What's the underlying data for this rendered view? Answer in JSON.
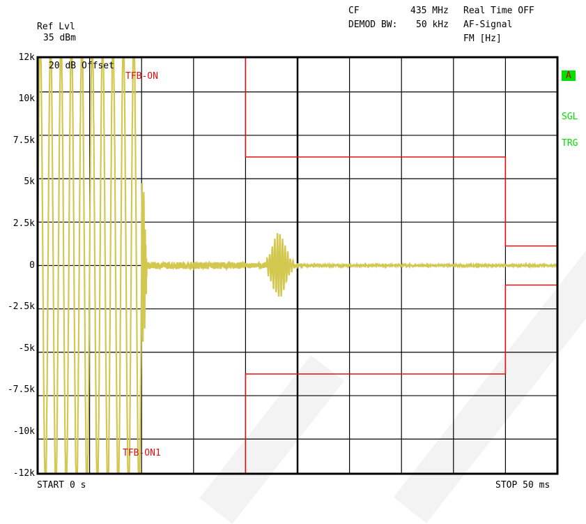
{
  "header": {
    "ref_lvl_label": "Ref Lvl",
    "ref_lvl_value": "35 dBm",
    "cf_label": "CF",
    "cf_value": "435 MHz",
    "realtime": "Real Time OFF",
    "demod_bw_label": "DEMOD BW:",
    "demod_bw_value": "50 kHz",
    "af_signal": "AF-Signal",
    "fm_unit": "FM [Hz]"
  },
  "side_labels": {
    "trace": "A",
    "sgl": "SGL",
    "trg": "TRG"
  },
  "footer": {
    "start": "START 0 s",
    "stop": "STOP 50 ms"
  },
  "colors": {
    "trace": "#d2c850",
    "limit": "#e01010",
    "grid": "#000000",
    "side": "#00e000"
  },
  "chart_data": {
    "type": "line",
    "xlabel": "",
    "ylabel": "",
    "x_range_ms": [
      0,
      50
    ],
    "ylim": [
      -12000,
      12000
    ],
    "y_ticks": [
      "12k",
      "10k",
      "7.5k",
      "5k",
      "2.5k",
      "0",
      "-2.5k",
      "-5k",
      "-7.5k",
      "-10k",
      "-12k"
    ],
    "grid": true,
    "annotations": [
      "20 dB Offset",
      "TFB-ON",
      "TFB-ON1"
    ],
    "limit_lines": [
      {
        "name": "TFB-ON",
        "points_ms_hz": [
          [
            0,
            12000
          ],
          [
            20,
            12000
          ],
          [
            20,
            6250
          ],
          [
            45,
            6250
          ],
          [
            45,
            1125
          ],
          [
            50,
            1125
          ]
        ]
      },
      {
        "name": "TFB-ON1",
        "points_ms_hz": [
          [
            0,
            -12000
          ],
          [
            20,
            -12000
          ],
          [
            20,
            -6250
          ],
          [
            45,
            -6250
          ],
          [
            45,
            -1125
          ],
          [
            50,
            -1125
          ]
        ]
      }
    ],
    "series": [
      {
        "segments": [
          {
            "x_ms": [
              0,
              10
            ],
            "description": "full-scale oscillation",
            "amplitude_hz": 12000
          },
          {
            "x_ms": [
              10,
              10.5
            ],
            "description": "decay",
            "amplitude_hz": 6000
          },
          {
            "x_ms": [
              10.5,
              20
            ],
            "description": "residual noise",
            "amplitude_hz": 200
          },
          {
            "x_ms": [
              22,
              25
            ],
            "description": "transient burst",
            "amplitude_hz": 1800
          },
          {
            "x_ms": [
              25,
              50
            ],
            "description": "settled",
            "amplitude_hz": 40
          }
        ]
      }
    ]
  }
}
